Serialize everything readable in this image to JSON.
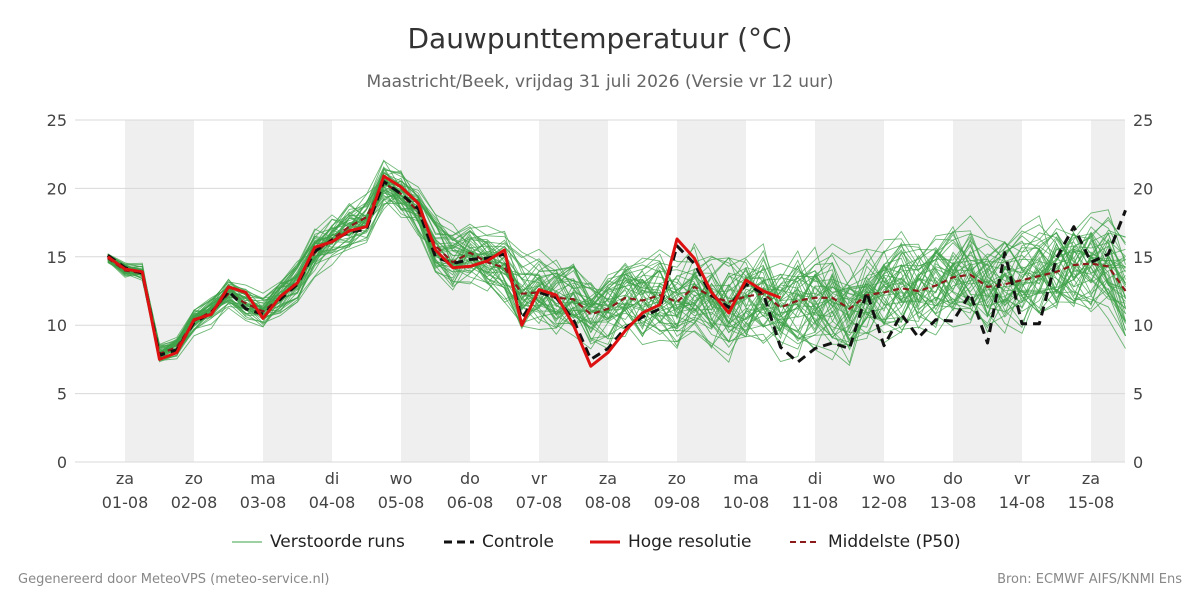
{
  "chart_data": {
    "type": "line",
    "title": "Dauwpunttemperatuur (°C)",
    "subtitle": "Maastricht/Beek, vrijdag 31 juli 2026 (Versie vr 12 uur)",
    "ylim": [
      0,
      25
    ],
    "yticks": [
      0,
      5,
      10,
      15,
      20,
      25
    ],
    "xlim": [
      -0.25,
      14.5
    ],
    "grid": true,
    "legend": "bottom",
    "days": [
      {
        "day": "za",
        "date": "01-08"
      },
      {
        "day": "zo",
        "date": "02-08"
      },
      {
        "day": "ma",
        "date": "03-08"
      },
      {
        "day": "di",
        "date": "04-08"
      },
      {
        "day": "wo",
        "date": "05-08"
      },
      {
        "day": "do",
        "date": "06-08"
      },
      {
        "day": "vr",
        "date": "07-08"
      },
      {
        "day": "za",
        "date": "08-08"
      },
      {
        "day": "zo",
        "date": "09-08"
      },
      {
        "day": "ma",
        "date": "10-08"
      },
      {
        "day": "di",
        "date": "11-08"
      },
      {
        "day": "wo",
        "date": "12-08"
      },
      {
        "day": "do",
        "date": "13-08"
      },
      {
        "day": "vr",
        "date": "14-08"
      },
      {
        "day": "za",
        "date": "15-08"
      }
    ],
    "shaded_days": [
      0,
      2,
      4,
      6,
      8,
      10,
      12,
      14
    ],
    "series": [
      {
        "name": "Hoge resolutie",
        "color": "#dd1111",
        "style": "solid",
        "x": [
          -0.25,
          0,
          0.25,
          0.5,
          0.75,
          1,
          1.25,
          1.5,
          1.75,
          2,
          2.25,
          2.5,
          2.75,
          3,
          3.25,
          3.5,
          3.75,
          4,
          4.25,
          4.5,
          4.75,
          5,
          5.25,
          5.5,
          5.75,
          6,
          6.25,
          6.5,
          6.75,
          7,
          7.25,
          7.5,
          7.75,
          8,
          8.25,
          8.5,
          8.75,
          9,
          9.25,
          9.5
        ],
        "values": [
          15.0,
          14.1,
          13.9,
          7.5,
          8.0,
          10.4,
          10.8,
          12.8,
          12.4,
          10.5,
          12.1,
          13.1,
          15.7,
          16.1,
          16.9,
          17.2,
          20.9,
          20.1,
          18.9,
          15.5,
          14.2,
          14.3,
          14.7,
          15.5,
          10.0,
          12.6,
          12.2,
          10.0,
          7.0,
          8.0,
          9.6,
          10.9,
          11.5,
          16.3,
          14.9,
          12.4,
          10.9,
          13.3,
          12.5,
          12.0
        ]
      },
      {
        "name": "Controle",
        "color": "#111111",
        "style": "dashed",
        "x": [
          -0.25,
          0,
          0.25,
          0.5,
          0.75,
          1,
          1.25,
          1.5,
          1.75,
          2,
          2.25,
          2.5,
          2.75,
          3,
          3.25,
          3.5,
          3.75,
          4,
          4.25,
          4.5,
          4.75,
          5,
          5.25,
          5.5,
          5.75,
          6,
          6.25,
          6.5,
          6.75,
          7,
          7.25,
          7.5,
          7.75,
          8,
          8.25,
          8.5,
          8.75,
          9,
          9.25,
          9.5,
          9.75,
          10,
          10.25,
          10.5,
          10.75,
          11,
          11.25,
          11.5,
          11.75,
          12,
          12.25,
          12.5,
          12.75,
          13,
          13.25,
          13.5,
          13.75,
          14,
          14.25,
          14.5
        ],
        "values": [
          15.1,
          14.2,
          13.8,
          7.8,
          8.2,
          10.2,
          10.9,
          12.5,
          11.2,
          10.8,
          11.9,
          13.0,
          15.4,
          16.2,
          16.8,
          17.0,
          20.5,
          19.6,
          18.5,
          15.0,
          14.5,
          14.8,
          14.9,
          15.2,
          10.5,
          12.4,
          12.0,
          10.4,
          7.5,
          8.3,
          9.8,
          10.6,
          11.2,
          15.8,
          14.5,
          12.2,
          11.3,
          13.0,
          12.3,
          8.4,
          7.3,
          8.3,
          8.7,
          8.3,
          12.4,
          8.5,
          10.8,
          9.1,
          10.4,
          10.3,
          12.3,
          8.7,
          15.3,
          10.1,
          10.1,
          14.9,
          17.2,
          14.6,
          15.2,
          18.4
        ]
      },
      {
        "name": "Middelste (P50)",
        "color": "#8b1a1a",
        "style": "dashed",
        "x": [
          -0.25,
          0,
          0.25,
          0.5,
          0.75,
          1,
          1.25,
          1.5,
          1.75,
          2,
          2.25,
          2.5,
          2.75,
          3,
          3.25,
          3.5,
          3.75,
          4,
          4.25,
          4.5,
          4.75,
          5,
          5.25,
          5.5,
          5.75,
          6,
          6.25,
          6.5,
          6.75,
          7,
          7.25,
          7.5,
          7.75,
          8,
          8.25,
          8.5,
          8.75,
          9,
          9.25,
          9.5,
          9.75,
          10,
          10.25,
          10.5,
          10.75,
          11,
          11.25,
          11.5,
          11.75,
          12,
          12.25,
          12.5,
          12.75,
          13,
          13.25,
          13.5,
          13.75,
          14,
          14.25,
          14.5
        ],
        "values": [
          14.9,
          14.0,
          13.8,
          7.9,
          8.4,
          10.3,
          11.0,
          12.3,
          11.6,
          11.0,
          12.0,
          13.2,
          15.3,
          16.3,
          17.2,
          17.9,
          20.4,
          19.6,
          18.3,
          15.8,
          14.6,
          15.3,
          14.6,
          14.2,
          12.3,
          12.4,
          12.0,
          11.9,
          10.8,
          11.2,
          12.0,
          11.8,
          12.2,
          11.7,
          12.8,
          12.1,
          11.7,
          12.1,
          12.3,
          11.3,
          11.8,
          12.0,
          12.0,
          11.2,
          12.2,
          12.4,
          12.7,
          12.5,
          12.9,
          13.5,
          13.7,
          12.8,
          13.0,
          13.3,
          13.6,
          13.9,
          14.4,
          14.5,
          14.3,
          12.5
        ]
      }
    ],
    "ensemble": {
      "name": "Verstoorde runs",
      "color": "#3fa24a",
      "members": 50
    }
  },
  "legend": {
    "items": [
      "Verstoorde runs",
      "Controle",
      "Hoge resolutie",
      "Middelste (P50)"
    ]
  },
  "footer": {
    "left": "Gegenereerd door MeteoVPS (meteo-service.nl)",
    "right": "Bron: ECMWF AIFS/KNMI Ens"
  }
}
